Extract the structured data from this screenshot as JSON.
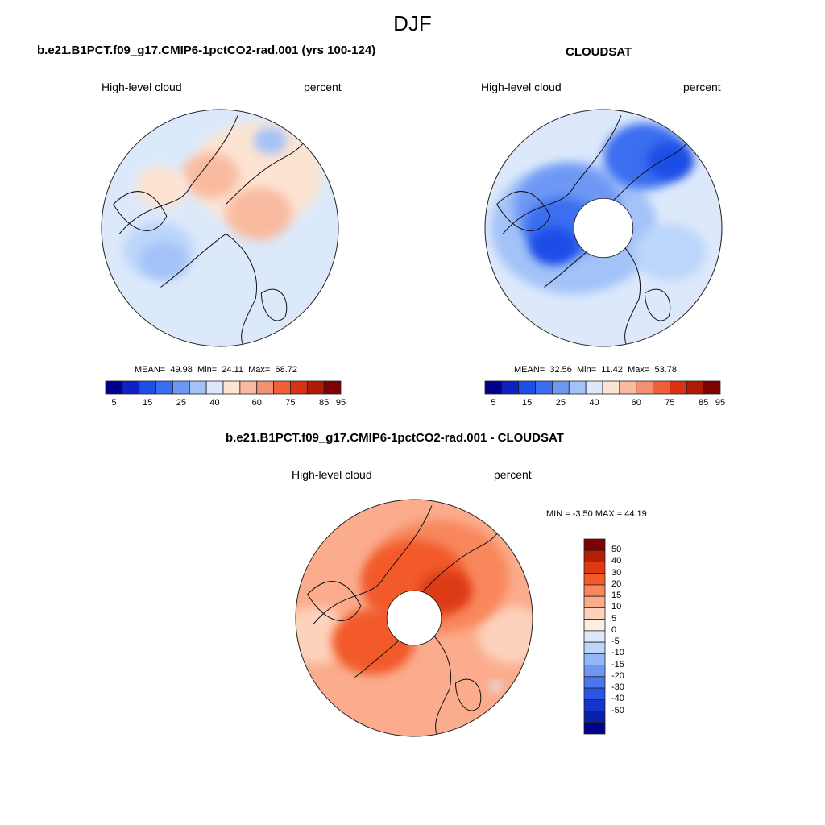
{
  "figure": {
    "season": "DJF"
  },
  "panels": {
    "model": {
      "title": "b.e21.B1PCT.f09_g17.CMIP6-1pctCO2-rad.001 (yrs 100-124)",
      "left_label": "High-level cloud",
      "right_label": "percent",
      "stats": {
        "mean_label": "MEAN=",
        "mean": "49.98",
        "min_label": "Min=",
        "min": "24.11",
        "max_label": "Max=",
        "max": "68.72"
      }
    },
    "obs": {
      "title": "CLOUDSAT",
      "left_label": "High-level cloud",
      "right_label": "percent",
      "stats": {
        "mean_label": "MEAN=",
        "mean": "32.56",
        "min_label": "Min=",
        "min": "11.42",
        "max_label": "Max=",
        "max": "53.78"
      }
    },
    "diff": {
      "title": "b.e21.B1PCT.f09_g17.CMIP6-1pctCO2-rad.001 - CLOUDSAT",
      "left_label": "High-level cloud",
      "right_label": "percent",
      "stats_text": "MIN =  -3.50 MAX =  44.19"
    }
  },
  "colorbars": {
    "abs": {
      "colors": [
        "#01008a",
        "#0e21c4",
        "#1d4ee6",
        "#3a6ef0",
        "#6e98f4",
        "#a3c2f8",
        "#dde9fb",
        "#fde4d2",
        "#f9bba0",
        "#f59072",
        "#ee6136",
        "#d83413",
        "#ae1b06",
        "#7d0003"
      ],
      "tick_labels": [
        "5",
        "15",
        "25",
        "40",
        "60",
        "75",
        "85",
        "95"
      ]
    },
    "diff": {
      "colors": [
        "#7d0003",
        "#b61f05",
        "#dd3a12",
        "#f25a2a",
        "#f8875b",
        "#fbac8d",
        "#fdd2bc",
        "#fdeee4",
        "#dde9fb",
        "#bcd5fa",
        "#93b7f6",
        "#6f97f2",
        "#4c76ee",
        "#2c55e6",
        "#1534cc",
        "#0820aa",
        "#01008a"
      ],
      "tick_labels": [
        "50",
        "40",
        "30",
        "20",
        "15",
        "10",
        "5",
        "0",
        "-5",
        "-10",
        "-15",
        "-20",
        "-30",
        "-40",
        "-50"
      ]
    }
  },
  "map_fields": {
    "model": {
      "base": "#dce9fb",
      "patches": [
        {
          "c": "#fde4d2",
          "dir": 55,
          "f": 0.55,
          "size": 0.55
        },
        {
          "c": "#f9bba0",
          "dir": 20,
          "f": 0.35,
          "size": 0.28
        },
        {
          "c": "#f9bba0",
          "dir": 100,
          "f": 0.45,
          "size": 0.24
        },
        {
          "c": "#bcd5fa",
          "dir": 200,
          "f": 0.55,
          "size": 0.3
        },
        {
          "c": "#a3c2f8",
          "dir": 210,
          "f": 0.55,
          "size": 0.2
        },
        {
          "c": "#a3c2f8",
          "dir": 60,
          "f": 0.85,
          "size": 0.14
        },
        {
          "c": "#fde4d2",
          "dir": 145,
          "f": 0.6,
          "size": 0.22
        }
      ]
    },
    "obs": {
      "base": "#dde9fb",
      "hole": 0.25,
      "patches": [
        {
          "c": "#a3c2f8",
          "dir": 180,
          "f": 0.25,
          "size": 0.7
        },
        {
          "c": "#6e98f4",
          "dir": 150,
          "f": 0.35,
          "size": 0.45
        },
        {
          "c": "#3a6ef0",
          "dir": 180,
          "f": 0.35,
          "size": 0.32
        },
        {
          "c": "#1d4ee6",
          "dir": 200,
          "f": 0.45,
          "size": 0.2
        },
        {
          "c": "#3a6ef0",
          "dir": 60,
          "f": 0.7,
          "size": 0.35
        },
        {
          "c": "#1d4ee6",
          "dir": 45,
          "f": 0.8,
          "size": 0.2
        },
        {
          "c": "#bcd5fa",
          "dir": 340,
          "f": 0.6,
          "size": 0.3
        }
      ]
    },
    "diff": {
      "base": "#fbac8d",
      "hole": 0.23,
      "patches": [
        {
          "c": "#fdd2bc",
          "dir": 190,
          "f": 0.85,
          "size": 0.3
        },
        {
          "c": "#fdd2bc",
          "dir": 350,
          "f": 0.85,
          "size": 0.3
        },
        {
          "c": "#f8875b",
          "dir": 60,
          "f": 0.4,
          "size": 0.6
        },
        {
          "c": "#f25a2a",
          "dir": 90,
          "f": 0.3,
          "size": 0.45
        },
        {
          "c": "#dd3a12",
          "dir": 40,
          "f": 0.35,
          "size": 0.22
        },
        {
          "c": "#f25a2a",
          "dir": 210,
          "f": 0.4,
          "size": 0.35
        },
        {
          "c": "#dde9fb",
          "dir": 320,
          "f": 0.9,
          "size": 0.05
        }
      ]
    }
  }
}
